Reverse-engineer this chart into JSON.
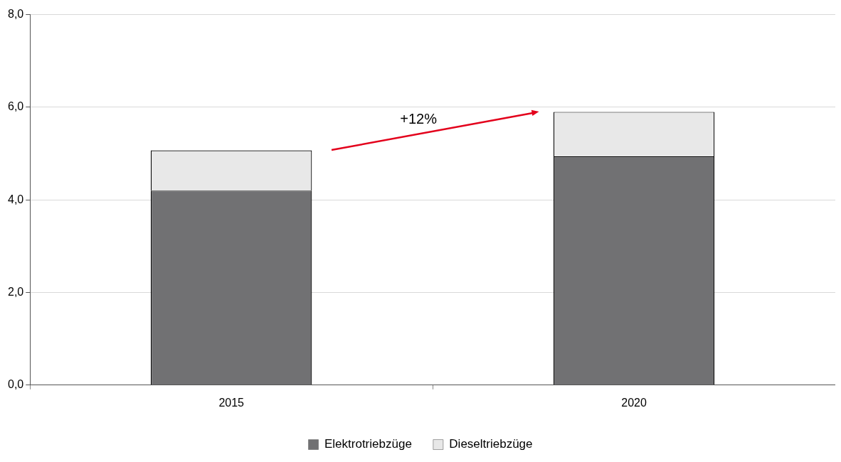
{
  "chart_data": {
    "type": "bar",
    "stacked": true,
    "categories": [
      "2015",
      "2020"
    ],
    "series": [
      {
        "name": "Elektrotriebzüge",
        "color": "#717173",
        "values": [
          4.2,
          4.94
        ]
      },
      {
        "name": "Dieseltriebzüge",
        "color": "#e8e8e8",
        "values": [
          0.87,
          0.96
        ]
      }
    ],
    "ylim": [
      0,
      8
    ],
    "yticks": [
      {
        "value": 0,
        "label": "0,0"
      },
      {
        "value": 2,
        "label": "2,0"
      },
      {
        "value": 4,
        "label": "4,0"
      },
      {
        "value": 6,
        "label": "6,0"
      },
      {
        "value": 8,
        "label": "8,0"
      }
    ],
    "grid": "y",
    "legend": "bottom",
    "annotations": [
      "+12%"
    ]
  }
}
